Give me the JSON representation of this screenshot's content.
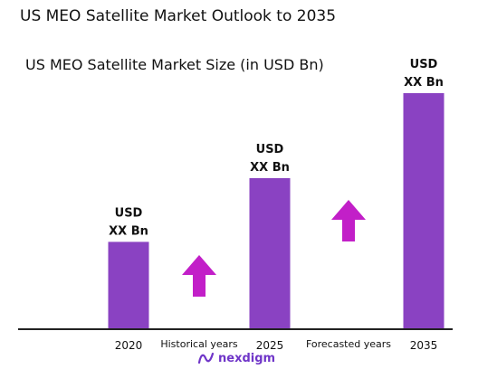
{
  "title": "US MEO Satellite Market Outlook to 2035",
  "colors": {
    "bar": "#8a42c2",
    "arrow": "#c21fc8",
    "axis": "#222222",
    "logo": "#6f35c8"
  },
  "chart_data": {
    "type": "bar",
    "title": "US MEO Satellite Market Size (in USD Bn)",
    "categories": [
      "2020",
      "2025",
      "2035"
    ],
    "values": [
      37,
      64,
      100
    ],
    "value_scale": "relative bar heights, no value axis shown",
    "data_labels": [
      [
        "USD",
        "XX Bn"
      ],
      [
        "USD",
        "XX Bn"
      ],
      [
        "USD",
        "XX Bn"
      ]
    ],
    "periods": [
      {
        "label": "Historical years",
        "trend": "up"
      },
      {
        "label": "Forecasted years",
        "trend": "up"
      }
    ],
    "ylim": [
      0,
      100
    ],
    "grid": false,
    "legend": "none"
  },
  "logo": {
    "text": "nexdigm",
    "icon": "nexdigm-wave-icon"
  }
}
